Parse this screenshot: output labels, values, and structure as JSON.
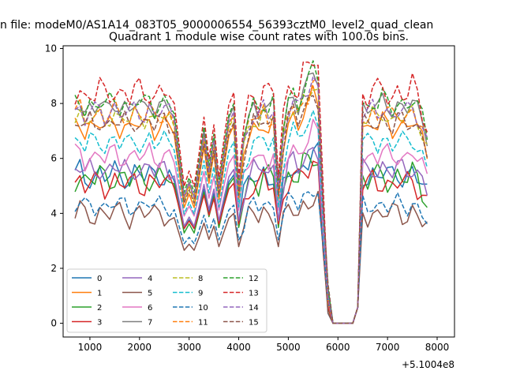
{
  "figure": {
    "suptitle": "n file: modeM0/AS1A14_083T05_9000006554_56393cztM0_level2_quad_clean"
  },
  "chart_data": {
    "type": "line",
    "title": "Quadrant 1 module wise count rates with 100.0s bins.",
    "xlabel": "",
    "ylabel": "",
    "x_offset_label": "+5.1004e8",
    "xlim": [
      460,
      8350
    ],
    "ylim": [
      -0.5,
      10.1
    ],
    "xticks": [
      1000,
      2000,
      3000,
      4000,
      5000,
      6000,
      7000,
      8000
    ],
    "xtick_labels": [
      "1000",
      "2000",
      "3000",
      "4000",
      "5000",
      "6000",
      "7000",
      "8000"
    ],
    "yticks": [
      0,
      2,
      4,
      6,
      8,
      10
    ],
    "ytick_labels": [
      "0",
      "2",
      "4",
      "6",
      "8",
      "10"
    ],
    "grid": false,
    "legend": {
      "placement": "lower-left",
      "columns": 4
    },
    "shape": [
      [
        "k",
        0,
        1
      ],
      [
        "k",
        1,
        1.02
      ],
      [
        "k",
        2,
        0.97
      ],
      [
        "k",
        3,
        1
      ],
      [
        "k",
        4,
        0.99
      ],
      [
        "k",
        5,
        1.01
      ],
      [
        "k",
        6,
        0.98
      ],
      [
        "k",
        7,
        1
      ],
      [
        "k",
        8,
        1.02
      ],
      [
        "k",
        9,
        0.99
      ],
      [
        "k",
        10,
        1
      ],
      [
        "k",
        11,
        0.98
      ],
      [
        "k",
        12,
        1.01
      ],
      [
        "k",
        13,
        1
      ],
      [
        "k",
        14,
        0.99
      ],
      [
        "k",
        15,
        1.02
      ],
      [
        "k",
        16,
        0.98
      ],
      [
        "k",
        17,
        1
      ],
      [
        "k",
        18,
        1.01
      ],
      [
        "k",
        19,
        0.99
      ],
      [
        "a",
        20,
        0.93
      ],
      [
        "a",
        21,
        0.66
      ],
      [
        "a",
        22,
        0.39
      ],
      [
        "a",
        23,
        0.49
      ],
      [
        "a",
        24,
        0.39
      ],
      [
        "a",
        25,
        0.6
      ],
      [
        "a",
        26,
        0.84
      ],
      [
        "a",
        27,
        0.57
      ],
      [
        "a",
        28,
        0.79
      ],
      [
        "a",
        29,
        0.45
      ],
      [
        "a",
        30,
        0.69
      ],
      [
        "a",
        31,
        0.92
      ],
      [
        "a",
        32,
        1
      ],
      [
        "a",
        33,
        0.45
      ],
      [
        "k",
        34,
        0.85
      ],
      [
        "k",
        35,
        0.95
      ],
      [
        "k",
        36,
        1
      ],
      [
        "k",
        37,
        0.97
      ],
      [
        "k",
        38,
        1.02
      ],
      [
        "k",
        39,
        0.98
      ],
      [
        "k",
        40,
        1
      ],
      [
        "a",
        41,
        0.45
      ],
      [
        "k",
        42,
        0.9
      ],
      [
        "k",
        43,
        1.02
      ],
      [
        "k",
        44,
        1.05
      ],
      [
        "k",
        45,
        1
      ],
      [
        "k",
        46,
        1.07
      ],
      [
        "k",
        47,
        1.1
      ],
      [
        "k",
        48,
        1.15
      ],
      [
        "k",
        49,
        1.12
      ],
      [
        "k",
        50,
        0.58
      ],
      [
        "k",
        51,
        0.14
      ],
      [
        "c",
        52,
        0
      ],
      [
        "c",
        53,
        0
      ],
      [
        "c",
        54,
        0
      ],
      [
        "c",
        55,
        0
      ],
      [
        "c",
        56,
        0
      ],
      [
        "c",
        57,
        0.58
      ],
      [
        "k",
        58,
        1
      ],
      [
        "k",
        59,
        0.98
      ],
      [
        "k",
        60,
        1.01
      ],
      [
        "k",
        61,
        0.99
      ],
      [
        "k",
        62,
        1.02
      ],
      [
        "k",
        63,
        1
      ],
      [
        "k",
        64,
        0.98
      ],
      [
        "k",
        65,
        1.01
      ],
      [
        "k",
        66,
        1
      ],
      [
        "k",
        67,
        0.99
      ],
      [
        "k",
        68,
        1.02
      ],
      [
        "k",
        69,
        0.98
      ],
      [
        "k",
        70,
        0.93
      ],
      [
        "k",
        71,
        0.86
      ]
    ],
    "series": [
      {
        "name": "0",
        "color": "#1f77b4",
        "style": "solid",
        "base": 5.4,
        "jitter": 0.35,
        "low": 2.2
      },
      {
        "name": "1",
        "color": "#ff7f0e",
        "style": "solid",
        "base": 7.2,
        "jitter": 0.28,
        "low": 2.3
      },
      {
        "name": "2",
        "color": "#2ca02c",
        "style": "solid",
        "base": 5.3,
        "jitter": 0.4,
        "low": 2.0
      },
      {
        "name": "3",
        "color": "#d62728",
        "style": "solid",
        "base": 5.1,
        "jitter": 0.35,
        "low": 2.4
      },
      {
        "name": "4",
        "color": "#9467bd",
        "style": "solid",
        "base": 5.6,
        "jitter": 0.3,
        "low": 2.2
      },
      {
        "name": "5",
        "color": "#8c564b",
        "style": "solid",
        "base": 4.0,
        "jitter": 0.35,
        "low": 1.8
      },
      {
        "name": "6",
        "color": "#e377c2",
        "style": "solid",
        "base": 6.1,
        "jitter": 0.3,
        "low": 2.5
      },
      {
        "name": "7",
        "color": "#7f7f7f",
        "style": "solid",
        "base": 7.9,
        "jitter": 0.25,
        "low": 2.5
      },
      {
        "name": "8",
        "color": "#bcbd22",
        "style": "dashed",
        "base": 7.5,
        "jitter": 0.25,
        "low": 2.5
      },
      {
        "name": "9",
        "color": "#17becf",
        "style": "dashed",
        "base": 6.6,
        "jitter": 0.3,
        "low": 2.3
      },
      {
        "name": "10",
        "color": "#1f77b4",
        "style": "dashed",
        "base": 4.3,
        "jitter": 0.28,
        "low": 2.0
      },
      {
        "name": "11",
        "color": "#ff7f0e",
        "style": "dashed",
        "base": 7.6,
        "jitter": 0.3,
        "low": 2.6
      },
      {
        "name": "12",
        "color": "#2ca02c",
        "style": "dashed",
        "base": 8.0,
        "jitter": 0.3,
        "low": 2.7
      },
      {
        "name": "13",
        "color": "#d62728",
        "style": "dashed",
        "base": 8.4,
        "jitter": 0.4,
        "low": 2.8
      },
      {
        "name": "14",
        "color": "#9467bd",
        "style": "dashed",
        "base": 7.7,
        "jitter": 0.3,
        "low": 2.6
      },
      {
        "name": "15",
        "color": "#8c564b",
        "style": "dashed",
        "base": 7.3,
        "jitter": 0.3,
        "low": 2.5
      }
    ]
  }
}
